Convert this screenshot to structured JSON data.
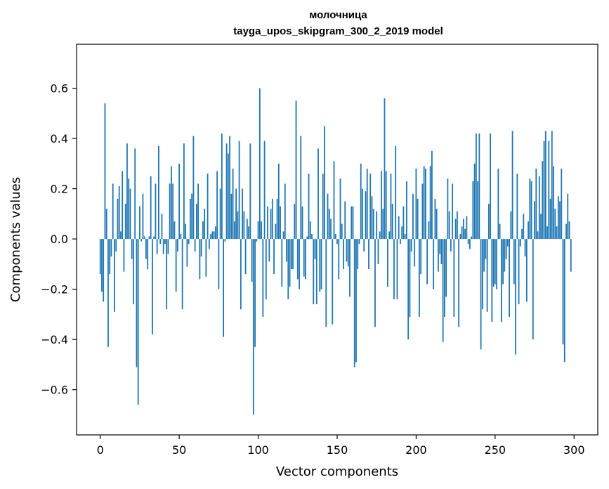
{
  "chart_data": {
    "type": "bar",
    "title": "молочница",
    "subtitle": "tayga_upos_skipgram_300_2_2019 model",
    "xlabel": "Vector components",
    "ylabel": "Components values",
    "xlim": [
      -15,
      315
    ],
    "ylim": [
      -0.78,
      0.775
    ],
    "xticks": [
      0,
      50,
      100,
      150,
      200,
      250,
      300
    ],
    "yticks": [
      -0.6,
      -0.4,
      -0.2,
      0.0,
      0.2,
      0.4,
      0.6
    ],
    "ytick_labels": [
      "−0.6",
      "−0.4",
      "−0.2",
      "0.0",
      "0.2",
      "0.4",
      "0.6"
    ],
    "bar_color": "#1f77b4",
    "grid": false,
    "legend": "none",
    "values": [
      -0.14,
      -0.21,
      -0.25,
      0.54,
      0.12,
      -0.43,
      -0.14,
      -0.07,
      0.22,
      -0.29,
      -0.05,
      0.16,
      0.21,
      0.03,
      0.27,
      -0.13,
      0.14,
      0.38,
      0.24,
      0.2,
      -0.08,
      -0.26,
      0.36,
      -0.51,
      -0.66,
      0.13,
      -0.01,
      0.18,
      0.01,
      -0.08,
      -0.12,
      0.01,
      0.25,
      -0.38,
      0.01,
      0.22,
      -0.06,
      0.37,
      -0.02,
      0.1,
      -0.06,
      -0.02,
      -0.28,
      -0.06,
      0.22,
      0.29,
      0.22,
      0.07,
      -0.21,
      -0.05,
      0.3,
      0.02,
      -0.28,
      0.38,
      0.06,
      -0.11,
      -0.02,
      0.16,
      0.18,
      0.41,
      -0.05,
      0.14,
      0.22,
      -0.16,
      -0.07,
      0.07,
      0.12,
      -0.15,
      0.26,
      -0.04,
      0.02,
      0.03,
      0.03,
      0.05,
      0.27,
      -0.2,
      0.2,
      0.42,
      -0.39,
      -0.01,
      0.38,
      0.34,
      0.41,
      0.18,
      0.28,
      0.07,
      0.2,
      0.11,
      0.39,
      -0.28,
      0.2,
      0.11,
      -0.14,
      0.08,
      0.05,
      0.38,
      -0.17,
      -0.7,
      -0.43,
      -0.01,
      0.07,
      0.6,
      0.07,
      -0.31,
      0.39,
      -0.24,
      0.13,
      -0.09,
      0.12,
      0.16,
      -0.14,
      0.06,
      0.16,
      0.3,
      0.13,
      -0.19,
      0.03,
      0.22,
      -0.09,
      -0.24,
      -0.19,
      -0.12,
      -0.12,
      0.14,
      0.55,
      -0.16,
      -0.2,
      0.41,
      0.13,
      -0.15,
      -0.16,
      0.01,
      0.26,
      0.07,
      0.02,
      -0.26,
      -0.08,
      -0.26,
      0.36,
      -0.21,
      -0.2,
      0.26,
      0.45,
      -0.35,
      0.18,
      0.12,
      0.08,
      -0.34,
      0.31,
      0.02,
      -0.02,
      -0.16,
      0.24,
      0.06,
      -0.12,
      0.15,
      -0.09,
      -0.11,
      -0.23,
      0.13,
      0.13,
      -0.51,
      -0.49,
      -0.12,
      -0.02,
      0.3,
      0.2,
      -0.05,
      0.19,
      0.28,
      -0.12,
      0.26,
      0.17,
      0.12,
      -0.35,
      0.11,
      -0.1,
      0.03,
      0.27,
      0.12,
      0.56,
      0.27,
      -0.19,
      0.03,
      0.26,
      0.14,
      -0.24,
      0.37,
      -0.24,
      0.09,
      -0.02,
      0.05,
      0.13,
      0.02,
      0.23,
      -0.4,
      -0.31,
      -0.05,
      0.18,
      -0.11,
      0.28,
      0.16,
      -0.31,
      -0.14,
      0.22,
      0.29,
      0.28,
      -0.18,
      0.07,
      0.29,
      0.35,
      -0.2,
      0.16,
      0.12,
      -0.13,
      -0.06,
      -0.1,
      -0.41,
      -0.31,
      -0.23,
      0.24,
      0.11,
      -0.05,
      0.22,
      -0.31,
      0.08,
      0.11,
      -0.35,
      0.02,
      0.05,
      0.08,
      0.04,
      0.09,
      -0.02,
      -0.04,
      0.01,
      0.23,
      0.3,
      0.42,
      0.23,
      0.42,
      -0.44,
      -0.28,
      -0.13,
      -0.08,
      -0.29,
      0.14,
      0.42,
      -0.33,
      -0.19,
      -0.18,
      -0.2,
      0.28,
      0.06,
      -0.33,
      -0.18,
      -0.13,
      -0.08,
      -0.03,
      -0.31,
      0.11,
      0.43,
      -0.18,
      -0.46,
      0.26,
      -0.26,
      -0.03,
      0.04,
      0.1,
      -0.07,
      -0.25,
      0.07,
      0.24,
      0.23,
      -0.4,
      0.15,
      0.28,
      0.03,
      0.25,
      0.1,
      0.31,
      0.39,
      0.43,
      0.05,
      0.39,
      0.16,
      0.43,
      0.29,
      0.12,
      0.05,
      0.17,
      0.15,
      0.28,
      -0.42,
      -0.49,
      0.06,
      0.18,
      0.07,
      -0.13
    ]
  }
}
